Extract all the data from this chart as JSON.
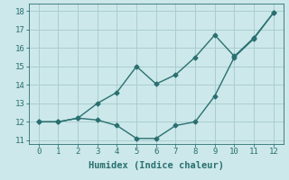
{
  "x": [
    0,
    1,
    2,
    3,
    4,
    5,
    6,
    7,
    8,
    9,
    10,
    11,
    12
  ],
  "line1_y": [
    12.0,
    12.0,
    12.2,
    13.0,
    13.6,
    15.0,
    14.05,
    14.55,
    15.5,
    16.7,
    15.55,
    16.55,
    17.9
  ],
  "line2_y": [
    12.0,
    12.0,
    12.2,
    12.1,
    11.8,
    11.1,
    11.1,
    11.8,
    12.0,
    13.4,
    15.5,
    16.5,
    17.9
  ],
  "color": "#2a7070",
  "bg_color": "#cce8ea",
  "grid_color": "#aacdd0",
  "xlabel": "Humidex (Indice chaleur)",
  "ylim": [
    10.8,
    18.4
  ],
  "xlim": [
    -0.5,
    12.5
  ],
  "yticks": [
    11,
    12,
    13,
    14,
    15,
    16,
    17,
    18
  ],
  "xticks": [
    0,
    1,
    2,
    3,
    4,
    5,
    6,
    7,
    8,
    9,
    10,
    11,
    12
  ],
  "marker": "D",
  "markersize": 2.5,
  "linewidth": 1.0,
  "xlabel_fontsize": 7.5,
  "tick_fontsize": 6.5
}
